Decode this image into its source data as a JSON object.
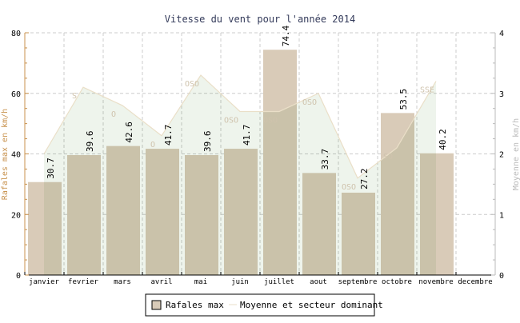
{
  "chart_data": {
    "type": "bar",
    "title": "Vitesse du vent pour l'année 2014",
    "categories": [
      "janvier",
      "fevrier",
      "mars",
      "avril",
      "mai",
      "juin",
      "juillet",
      "aout",
      "septembre",
      "octobre",
      "novembre",
      "decembre"
    ],
    "series": [
      {
        "name": "Rafales max",
        "axis": "left",
        "type": "bar",
        "values": [
          30.7,
          39.6,
          42.6,
          41.7,
          39.6,
          41.7,
          74.4,
          33.7,
          27.2,
          53.5,
          40.2,
          null
        ],
        "color": "#d9cbb8"
      },
      {
        "name": "Moyenne et secteur dominant",
        "axis": "right",
        "type": "area",
        "values": [
          2.0,
          3.1,
          2.8,
          2.3,
          3.3,
          2.7,
          2.7,
          3.0,
          1.6,
          2.1,
          3.2,
          null
        ],
        "labels": [
          "",
          "S",
          "O",
          "O",
          "OSO",
          "OSO",
          "OSO",
          "OSO",
          "OSO",
          "SO",
          "SSE",
          ""
        ],
        "color": "#eef4ec"
      }
    ],
    "ylabel": "Rafales max en km/h",
    "y2label": "Moyenne en km/h",
    "ylim": [
      0,
      80
    ],
    "y2lim": [
      0,
      4
    ],
    "yticks": [
      0,
      20,
      40,
      60,
      80
    ],
    "y2ticks": [
      0,
      1,
      2,
      3,
      4
    ],
    "grid": true,
    "legend": "bottom"
  }
}
